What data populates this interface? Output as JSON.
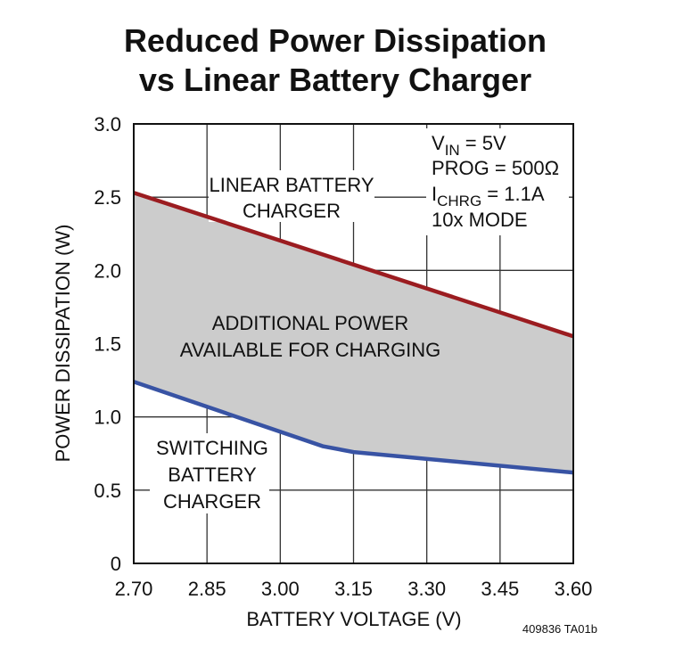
{
  "chart_data": {
    "type": "line",
    "title": [
      "Reduced Power Dissipation",
      "vs Linear Battery Charger"
    ],
    "xlabel": "BATTERY VOLTAGE (V)",
    "ylabel": "POWER DISSIPATION (W)",
    "xlim": [
      2.7,
      3.6
    ],
    "ylim": [
      0,
      3.0
    ],
    "x_ticks": [
      "2.70",
      "2.85",
      "3.00",
      "3.15",
      "3.30",
      "3.45",
      "3.60"
    ],
    "y_ticks": [
      "0",
      "0.5",
      "1.0",
      "1.5",
      "2.0",
      "2.5",
      "3.0"
    ],
    "grid": true,
    "series": [
      {
        "color": "#9b1c20",
        "x": [
          2.7,
          3.6
        ],
        "y": [
          2.53,
          1.55
        ]
      },
      {
        "color": "#3853a4",
        "x": [
          2.7,
          3.087,
          3.15,
          3.6
        ],
        "y": [
          1.24,
          0.8,
          0.76,
          0.62
        ]
      }
    ],
    "fill_between_color": "#cccccc",
    "annotations": {
      "linear": [
        "LINEAR BATTERY",
        "CHARGER"
      ],
      "additional": [
        "ADDITIONAL POWER",
        "AVAILABLE FOR CHARGING"
      ],
      "switching": [
        "SWITCHING",
        "BATTERY",
        "CHARGER"
      ],
      "conditions": {
        "vin_main": "V",
        "vin_sub": "IN",
        "vin_rest": " = 5V",
        "prog": "PROG = 500Ω",
        "ichrg_main": "I",
        "ichrg_sub": "CHRG",
        "ichrg_rest": " = 1.1A",
        "mode": "10x MODE"
      }
    },
    "figure_id": "409836 TA01b"
  }
}
